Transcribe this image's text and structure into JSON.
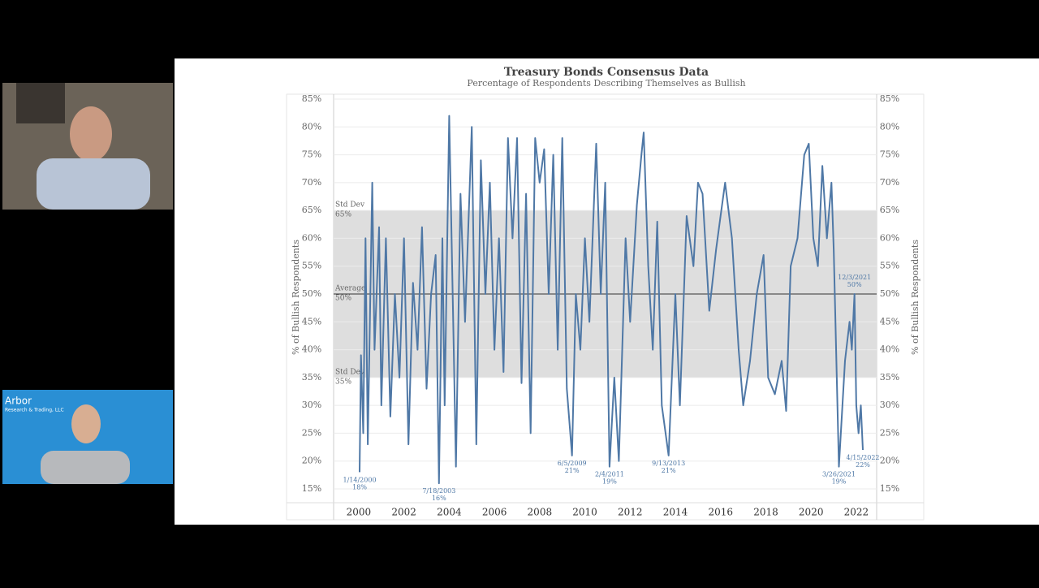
{
  "participants": [
    {
      "logo": "Arbor",
      "logo_sub": "Research & Trading, LLC"
    }
  ],
  "chart_data": {
    "type": "line",
    "title": "Treasury Bonds Consensus Data",
    "subtitle": "Percentage of Respondents Describing Themselves as Bullish",
    "y_label": "% of Bullish Respondents",
    "y2_label": "% of Bullish Respondents",
    "xlim": [
      1998.89,
      2022.9
    ],
    "xticks": [
      2000,
      2002,
      2004,
      2006,
      2008,
      2010,
      2012,
      2014,
      2016,
      2018,
      2020,
      2022
    ],
    "ylim": [
      15,
      85
    ],
    "yticks": [
      {
        "value": 15,
        "label": "15%"
      },
      {
        "value": 20,
        "label": "20%"
      },
      {
        "value": 25,
        "label": "25%"
      },
      {
        "value": 30,
        "label": "30%"
      },
      {
        "value": 35,
        "label": "35%"
      },
      {
        "value": 40,
        "label": "40%"
      },
      {
        "value": 45,
        "label": "45%"
      },
      {
        "value": 50,
        "label": "50%"
      },
      {
        "value": 55,
        "label": "55%"
      },
      {
        "value": 60,
        "label": "60%"
      },
      {
        "value": 65,
        "label": "65%"
      },
      {
        "value": 70,
        "label": "70%"
      },
      {
        "value": 75,
        "label": "75%"
      },
      {
        "value": 80,
        "label": "80%"
      },
      {
        "value": 85,
        "label": "85%"
      }
    ],
    "grid": true,
    "bands": [
      {
        "label": "Std Dev",
        "value": 65,
        "value_label": "65%"
      },
      {
        "label": "Average",
        "value": 50,
        "value_label": "50%"
      },
      {
        "label": "Std Dev",
        "value": 35,
        "value_label": "35%"
      }
    ],
    "band_color": "#dedede",
    "series": [
      {
        "color": "#4f78a6",
        "x": [
          2000.04,
          2000.1,
          2000.2,
          2000.3,
          2000.4,
          2000.6,
          2000.7,
          2000.9,
          2001.0,
          2001.2,
          2001.4,
          2001.6,
          2001.8,
          2002.0,
          2002.2,
          2002.4,
          2002.6,
          2002.8,
          2003.0,
          2003.2,
          2003.4,
          2003.55,
          2003.7,
          2003.8,
          2004.0,
          2004.2,
          2004.3,
          2004.5,
          2004.7,
          2005.0,
          2005.2,
          2005.4,
          2005.6,
          2005.8,
          2006.0,
          2006.2,
          2006.4,
          2006.6,
          2006.8,
          2007.0,
          2007.2,
          2007.4,
          2007.6,
          2007.8,
          2008.0,
          2008.2,
          2008.4,
          2008.6,
          2008.8,
          2009.0,
          2009.2,
          2009.43,
          2009.6,
          2009.8,
          2010.0,
          2010.2,
          2010.5,
          2010.7,
          2010.9,
          2011.09,
          2011.3,
          2011.5,
          2011.8,
          2012.0,
          2012.3,
          2012.5,
          2012.6,
          2012.8,
          2013.0,
          2013.2,
          2013.4,
          2013.7,
          2014.0,
          2014.2,
          2014.5,
          2014.8,
          2015.0,
          2015.2,
          2015.5,
          2015.8,
          2016.0,
          2016.2,
          2016.5,
          2016.8,
          2017.0,
          2017.3,
          2017.6,
          2017.9,
          2018.1,
          2018.4,
          2018.7,
          2018.9,
          2019.1,
          2019.4,
          2019.7,
          2019.9,
          2020.1,
          2020.3,
          2020.5,
          2020.7,
          2020.9,
          2021.0,
          2021.23,
          2021.5,
          2021.7,
          2021.8,
          2021.92,
          2022.0,
          2022.1,
          2022.2,
          2022.29
        ],
        "values": [
          18,
          39,
          25,
          60,
          23,
          70,
          40,
          62,
          30,
          60,
          28,
          50,
          35,
          60,
          23,
          52,
          40,
          62,
          33,
          50,
          57,
          16,
          60,
          30,
          82,
          40,
          19,
          68,
          45,
          80,
          23,
          74,
          50,
          70,
          40,
          60,
          36,
          78,
          60,
          78,
          34,
          68,
          25,
          78,
          70,
          76,
          50,
          75,
          40,
          78,
          33,
          21,
          50,
          40,
          60,
          45,
          77,
          50,
          70,
          19,
          35,
          20,
          60,
          45,
          66,
          75,
          79,
          55,
          40,
          63,
          30,
          21,
          50,
          30,
          64,
          55,
          70,
          68,
          47,
          58,
          64,
          70,
          60,
          40,
          30,
          38,
          50,
          57,
          35,
          32,
          38,
          29,
          55,
          60,
          75,
          77,
          60,
          55,
          73,
          60,
          70,
          58,
          19,
          38,
          45,
          40,
          50,
          30,
          25,
          30,
          22
        ]
      }
    ],
    "annotations": [
      {
        "date": "1/14/2000",
        "x": 2000.04,
        "value": 18,
        "value_label": "18%"
      },
      {
        "date": "7/18/2003",
        "x": 2003.55,
        "value": 16,
        "value_label": "16%"
      },
      {
        "date": "6/5/2009",
        "x": 2009.43,
        "value": 21,
        "value_label": "21%"
      },
      {
        "date": "2/4/2011",
        "x": 2011.09,
        "value": 19,
        "value_label": "19%"
      },
      {
        "date": "9/13/2013",
        "x": 2013.7,
        "value": 21,
        "value_label": "21%"
      },
      {
        "date": "3/26/2021",
        "x": 2021.23,
        "value": 19,
        "value_label": "19%"
      },
      {
        "date": "12/3/2021",
        "x": 2021.92,
        "value": 50,
        "value_label": "50%",
        "above": true
      },
      {
        "date": "4/15/2022",
        "x": 2022.29,
        "value": 22,
        "value_label": "22%"
      }
    ]
  }
}
